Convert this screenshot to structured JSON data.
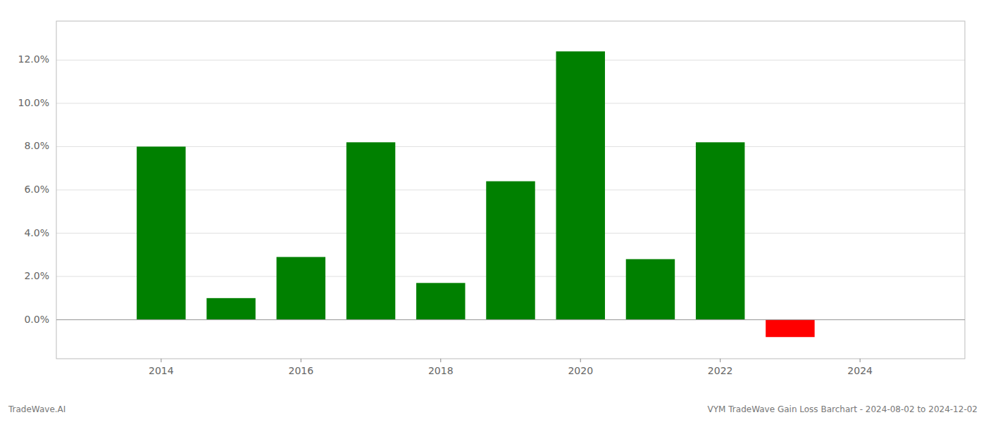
{
  "chart_data": {
    "type": "bar",
    "x": [
      2014,
      2015,
      2016,
      2017,
      2018,
      2019,
      2020,
      2021,
      2022,
      2023,
      2024
    ],
    "values": [
      0.08,
      0.01,
      0.029,
      0.082,
      0.017,
      0.064,
      0.124,
      0.028,
      0.082,
      -0.008,
      0.0
    ],
    "colors": [
      "#008000",
      "#008000",
      "#008000",
      "#008000",
      "#008000",
      "#008000",
      "#008000",
      "#008000",
      "#008000",
      "#ff0000",
      "#008000"
    ],
    "xlim": [
      2012.5,
      2025.5
    ],
    "xticks": [
      2014,
      2016,
      2018,
      2020,
      2022,
      2024
    ],
    "ylim": [
      -0.018,
      0.138
    ],
    "yticks": [
      {
        "value": 0.0,
        "label": "0.0%"
      },
      {
        "value": 0.02,
        "label": "2.0%"
      },
      {
        "value": 0.04,
        "label": "4.0%"
      },
      {
        "value": 0.06,
        "label": "6.0%"
      },
      {
        "value": 0.08,
        "label": "8.0%"
      },
      {
        "value": 0.1,
        "label": "10.0%"
      },
      {
        "value": 0.12,
        "label": "12.0%"
      }
    ],
    "grid": true,
    "annotations": [
      "TradeWave.AI",
      "VYM TradeWave Gain Loss Barchart - 2024-08-02 to 2024-12-02"
    ]
  }
}
